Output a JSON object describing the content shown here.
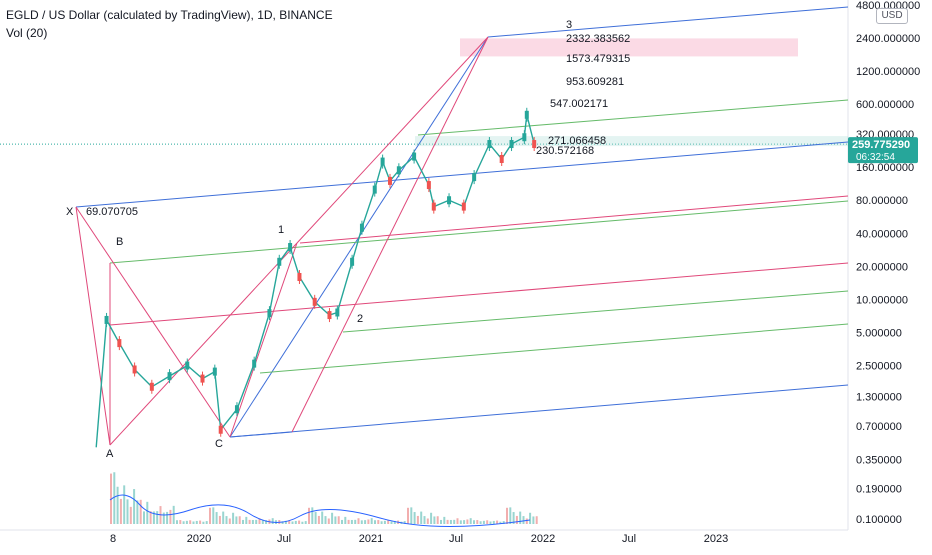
{
  "header": {
    "title": "EGLD / US Dollar (calculated by TradingView), 1D, BINANCE",
    "volume_label": "Vol (20)",
    "currency_button": "USD"
  },
  "price": {
    "current": "259.775290",
    "countdown": "06:32:54",
    "badge_color": "#26a69a"
  },
  "chart_data": {
    "type": "line",
    "title": "EGLD / US Dollar (calculated by TradingView), 1D, BINANCE",
    "y_scale": "log",
    "ylim": [
      0.1,
      4800
    ],
    "y_ticks": [
      "4800.000000",
      "2400.000000",
      "1200.000000",
      "600.000000",
      "320.000000",
      "160.000000",
      "80.000000",
      "40.000000",
      "20.000000",
      "10.000000",
      "5.000000",
      "2.500000",
      "1.300000",
      "0.700000",
      "0.350000",
      "0.190000",
      "0.100000"
    ],
    "x_ticks": [
      "8",
      "2020",
      "Jul",
      "2021",
      "Jul",
      "2022",
      "Jul",
      "2023"
    ],
    "grid": false,
    "series": [
      {
        "values": [
          {
            "date": "2019-07-04",
            "price": 0.45
          },
          {
            "date": "2019-07-25",
            "price": 6.5
          },
          {
            "date": "2019-08-20",
            "price": 4.0
          },
          {
            "date": "2019-09-20",
            "price": 2.3
          },
          {
            "date": "2019-10-25",
            "price": 1.6
          },
          {
            "date": "2019-11-30",
            "price": 2.0
          },
          {
            "date": "2020-01-05",
            "price": 2.5
          },
          {
            "date": "2020-02-05",
            "price": 1.9
          },
          {
            "date": "2020-03-01",
            "price": 2.2
          },
          {
            "date": "2020-03-13",
            "price": 0.65
          },
          {
            "date": "2020-04-15",
            "price": 1.0
          },
          {
            "date": "2020-05-20",
            "price": 2.6
          },
          {
            "date": "2020-06-20",
            "price": 7.5
          },
          {
            "date": "2020-07-10",
            "price": 22
          },
          {
            "date": "2020-08-01",
            "price": 30
          },
          {
            "date": "2020-08-20",
            "price": 16
          },
          {
            "date": "2020-09-20",
            "price": 9.5
          },
          {
            "date": "2020-10-20",
            "price": 7.2
          },
          {
            "date": "2020-11-05",
            "price": 7.6
          },
          {
            "date": "2020-12-05",
            "price": 22
          },
          {
            "date": "2020-12-25",
            "price": 45
          },
          {
            "date": "2021-01-20",
            "price": 100
          },
          {
            "date": "2021-02-05",
            "price": 180
          },
          {
            "date": "2021-02-20",
            "price": 120
          },
          {
            "date": "2021-03-10",
            "price": 150
          },
          {
            "date": "2021-04-10",
            "price": 200
          },
          {
            "date": "2021-05-10",
            "price": 110
          },
          {
            "date": "2021-05-20",
            "price": 70
          },
          {
            "date": "2021-06-20",
            "price": 80
          },
          {
            "date": "2021-07-20",
            "price": 70
          },
          {
            "date": "2021-08-10",
            "price": 130
          },
          {
            "date": "2021-09-10",
            "price": 260
          },
          {
            "date": "2021-10-05",
            "price": 190
          },
          {
            "date": "2021-10-25",
            "price": 260
          },
          {
            "date": "2021-11-20",
            "price": 300
          },
          {
            "date": "2021-11-25",
            "price": 480
          },
          {
            "date": "2021-12-10",
            "price": 260
          }
        ]
      }
    ],
    "fib_levels": [
      "2332.383562",
      "1573.479315",
      "953.609281",
      "547.002171",
      "271.066458",
      "230.572168"
    ],
    "wave_labels": [
      "X",
      "69.070705",
      "A",
      "B",
      "C",
      "1",
      "2",
      "3"
    ]
  }
}
